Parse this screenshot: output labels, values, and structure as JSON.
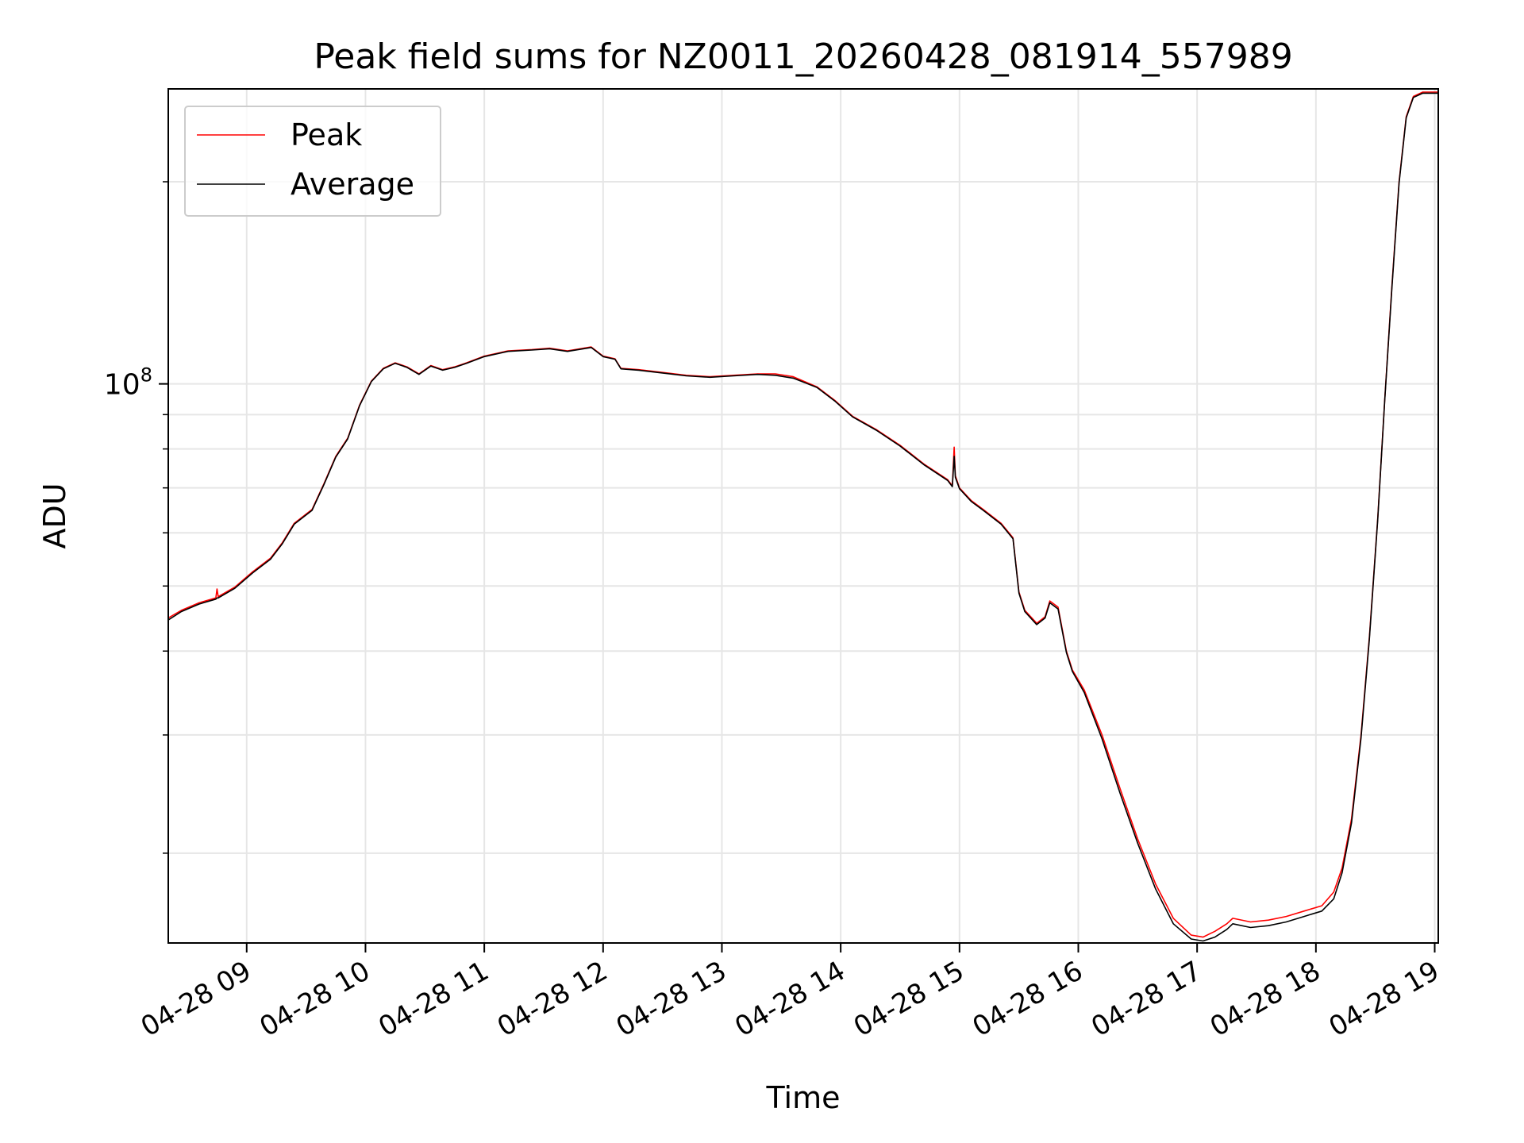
{
  "chart_data": {
    "type": "line",
    "title": "Peak field sums for NZ0011_20260428_081914_557989",
    "xlabel": "Time",
    "ylabel": "ADU",
    "y_scale": "log",
    "ylim": [
      14700000,
      275000000
    ],
    "y_major_ticks": [
      {
        "value": 100000000,
        "base": "10",
        "exp": "8"
      }
    ],
    "y_minor_ticks": [
      20000000,
      30000000,
      40000000,
      50000000,
      60000000,
      70000000,
      80000000,
      90000000,
      200000000
    ],
    "x_unit": "hour",
    "xlim": [
      8.34,
      19.03
    ],
    "x_ticks": [
      {
        "value": 9,
        "label": "04-28 09"
      },
      {
        "value": 10,
        "label": "04-28 10"
      },
      {
        "value": 11,
        "label": "04-28 11"
      },
      {
        "value": 12,
        "label": "04-28 12"
      },
      {
        "value": 13,
        "label": "04-28 13"
      },
      {
        "value": 14,
        "label": "04-28 14"
      },
      {
        "value": 15,
        "label": "04-28 15"
      },
      {
        "value": 16,
        "label": "04-28 16"
      },
      {
        "value": 17,
        "label": "04-28 17"
      },
      {
        "value": 18,
        "label": "04-28 18"
      },
      {
        "value": 19,
        "label": "04-28 19"
      }
    ],
    "grid": true,
    "legend_position": "top-left",
    "series": [
      {
        "name": "Peak",
        "color": "#ff0000",
        "points": [
          [
            8.34,
            44800000
          ],
          [
            8.45,
            46000000
          ],
          [
            8.6,
            47200000
          ],
          [
            8.74,
            48000000
          ],
          [
            8.75,
            49500000
          ],
          [
            8.76,
            48200000
          ],
          [
            8.9,
            49800000
          ],
          [
            9.05,
            52500000
          ],
          [
            9.2,
            55000000
          ],
          [
            9.3,
            58000000
          ],
          [
            9.4,
            62000000
          ],
          [
            9.55,
            65000000
          ],
          [
            9.65,
            71000000
          ],
          [
            9.75,
            78000000
          ],
          [
            9.85,
            83000000
          ],
          [
            9.95,
            93000000
          ],
          [
            10.05,
            101000000
          ],
          [
            10.15,
            105500000
          ],
          [
            10.25,
            107500000
          ],
          [
            10.35,
            106000000
          ],
          [
            10.45,
            103500000
          ],
          [
            10.55,
            106500000
          ],
          [
            10.65,
            105000000
          ],
          [
            10.75,
            106000000
          ],
          [
            10.85,
            107500000
          ],
          [
            11.0,
            110000000
          ],
          [
            11.2,
            112000000
          ],
          [
            11.4,
            112500000
          ],
          [
            11.55,
            113000000
          ],
          [
            11.7,
            112000000
          ],
          [
            11.9,
            113500000
          ],
          [
            12.0,
            110000000
          ],
          [
            12.1,
            109000000
          ],
          [
            12.15,
            105500000
          ],
          [
            12.3,
            105000000
          ],
          [
            12.5,
            104000000
          ],
          [
            12.7,
            103000000
          ],
          [
            12.9,
            102500000
          ],
          [
            13.1,
            103000000
          ],
          [
            13.3,
            103500000
          ],
          [
            13.45,
            103500000
          ],
          [
            13.6,
            102500000
          ],
          [
            13.8,
            99000000
          ],
          [
            13.95,
            94500000
          ],
          [
            14.1,
            89500000
          ],
          [
            14.3,
            85500000
          ],
          [
            14.5,
            81000000
          ],
          [
            14.7,
            76000000
          ],
          [
            14.9,
            72000000
          ],
          [
            14.94,
            70500000
          ],
          [
            14.955,
            80500000
          ],
          [
            14.965,
            73000000
          ],
          [
            15.0,
            70000000
          ],
          [
            15.1,
            67000000
          ],
          [
            15.2,
            65000000
          ],
          [
            15.35,
            62000000
          ],
          [
            15.45,
            59000000
          ],
          [
            15.5,
            49000000
          ],
          [
            15.55,
            46000000
          ],
          [
            15.65,
            44000000
          ],
          [
            15.72,
            45000000
          ],
          [
            15.76,
            47500000
          ],
          [
            15.83,
            46500000
          ],
          [
            15.9,
            40000000
          ],
          [
            15.95,
            37500000
          ],
          [
            16.05,
            35000000
          ],
          [
            16.2,
            30000000
          ],
          [
            16.35,
            25000000
          ],
          [
            16.5,
            21000000
          ],
          [
            16.65,
            18000000
          ],
          [
            16.8,
            16000000
          ],
          [
            16.95,
            15100000
          ],
          [
            17.05,
            15000000
          ],
          [
            17.15,
            15300000
          ],
          [
            17.25,
            15700000
          ],
          [
            17.3,
            16000000
          ],
          [
            17.45,
            15800000
          ],
          [
            17.6,
            15900000
          ],
          [
            17.75,
            16100000
          ],
          [
            17.9,
            16400000
          ],
          [
            18.05,
            16700000
          ],
          [
            18.15,
            17500000
          ],
          [
            18.22,
            19000000
          ],
          [
            18.3,
            22500000
          ],
          [
            18.38,
            30000000
          ],
          [
            18.45,
            42000000
          ],
          [
            18.52,
            63000000
          ],
          [
            18.58,
            95000000
          ],
          [
            18.64,
            140000000
          ],
          [
            18.7,
            200000000
          ],
          [
            18.76,
            250000000
          ],
          [
            18.82,
            268000000
          ],
          [
            18.9,
            272000000
          ],
          [
            19.03,
            272000000
          ]
        ]
      },
      {
        "name": "Average",
        "color": "#000000",
        "points": [
          [
            8.34,
            44500000
          ],
          [
            8.45,
            45800000
          ],
          [
            8.6,
            47000000
          ],
          [
            8.74,
            47800000
          ],
          [
            8.75,
            48000000
          ],
          [
            8.76,
            48000000
          ],
          [
            8.9,
            49600000
          ],
          [
            9.05,
            52300000
          ],
          [
            9.2,
            54800000
          ],
          [
            9.3,
            57800000
          ],
          [
            9.4,
            61800000
          ],
          [
            9.55,
            64800000
          ],
          [
            9.65,
            70800000
          ],
          [
            9.75,
            77800000
          ],
          [
            9.85,
            82800000
          ],
          [
            9.95,
            92800000
          ],
          [
            10.05,
            100800000
          ],
          [
            10.15,
            105300000
          ],
          [
            10.25,
            107300000
          ],
          [
            10.35,
            105800000
          ],
          [
            10.45,
            103300000
          ],
          [
            10.55,
            106300000
          ],
          [
            10.65,
            104800000
          ],
          [
            10.75,
            105800000
          ],
          [
            10.85,
            107300000
          ],
          [
            11.0,
            109800000
          ],
          [
            11.2,
            111800000
          ],
          [
            11.4,
            112300000
          ],
          [
            11.55,
            112800000
          ],
          [
            11.7,
            111800000
          ],
          [
            11.9,
            113300000
          ],
          [
            12.0,
            109800000
          ],
          [
            12.1,
            108800000
          ],
          [
            12.15,
            105300000
          ],
          [
            12.3,
            104800000
          ],
          [
            12.5,
            103800000
          ],
          [
            12.7,
            102800000
          ],
          [
            12.9,
            102300000
          ],
          [
            13.1,
            102800000
          ],
          [
            13.3,
            103300000
          ],
          [
            13.45,
            103000000
          ],
          [
            13.6,
            102000000
          ],
          [
            13.8,
            98800000
          ],
          [
            13.95,
            94300000
          ],
          [
            14.1,
            89300000
          ],
          [
            14.3,
            85300000
          ],
          [
            14.5,
            80800000
          ],
          [
            14.7,
            75800000
          ],
          [
            14.9,
            71800000
          ],
          [
            14.94,
            70300000
          ],
          [
            14.955,
            78000000
          ],
          [
            14.965,
            72600000
          ],
          [
            15.0,
            69800000
          ],
          [
            15.1,
            66800000
          ],
          [
            15.2,
            64800000
          ],
          [
            15.35,
            61800000
          ],
          [
            15.45,
            58800000
          ],
          [
            15.5,
            48800000
          ],
          [
            15.55,
            45800000
          ],
          [
            15.65,
            43800000
          ],
          [
            15.72,
            44800000
          ],
          [
            15.76,
            47200000
          ],
          [
            15.83,
            46200000
          ],
          [
            15.9,
            39800000
          ],
          [
            15.95,
            37300000
          ],
          [
            16.05,
            34700000
          ],
          [
            16.2,
            29600000
          ],
          [
            16.35,
            24600000
          ],
          [
            16.5,
            20700000
          ],
          [
            16.65,
            17700000
          ],
          [
            16.8,
            15700000
          ],
          [
            16.95,
            14900000
          ],
          [
            17.05,
            14800000
          ],
          [
            17.15,
            15000000
          ],
          [
            17.25,
            15400000
          ],
          [
            17.3,
            15700000
          ],
          [
            17.45,
            15500000
          ],
          [
            17.6,
            15600000
          ],
          [
            17.75,
            15800000
          ],
          [
            17.9,
            16100000
          ],
          [
            18.05,
            16400000
          ],
          [
            18.15,
            17100000
          ],
          [
            18.22,
            18700000
          ],
          [
            18.3,
            22200000
          ],
          [
            18.38,
            29700000
          ],
          [
            18.45,
            41700000
          ],
          [
            18.52,
            62700000
          ],
          [
            18.58,
            94700000
          ],
          [
            18.64,
            139000000
          ],
          [
            18.7,
            199000000
          ],
          [
            18.76,
            249000000
          ],
          [
            18.82,
            267000000
          ],
          [
            18.9,
            271000000
          ],
          [
            19.03,
            271000000
          ]
        ]
      }
    ]
  }
}
